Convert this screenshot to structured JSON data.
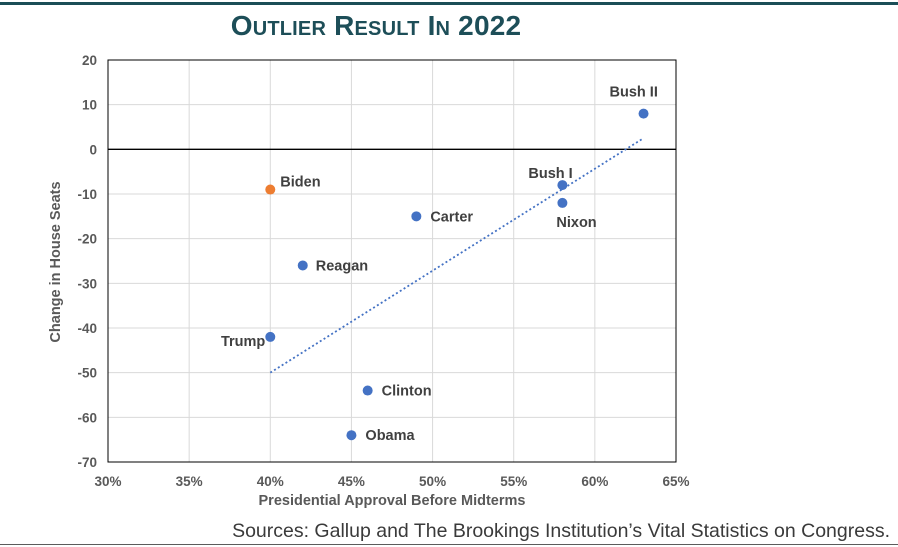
{
  "page": {
    "title": "Outlier Result In 2022",
    "source": "Sources: Gallup and The Brookings Institution’s Vital Statistics on Congress."
  },
  "chart_data": {
    "type": "scatter",
    "title": "Outlier Result In 2022",
    "xlabel": "Presidential Approval Before Midterms",
    "ylabel": "Change in House Seats",
    "xlim": [
      30,
      65
    ],
    "ylim": [
      -70,
      20
    ],
    "x_ticks": [
      30,
      35,
      40,
      45,
      50,
      55,
      60,
      65
    ],
    "x_tick_labels": [
      "30%",
      "35%",
      "40%",
      "45%",
      "50%",
      "55%",
      "60%",
      "65%"
    ],
    "y_ticks": [
      -70,
      -60,
      -50,
      -40,
      -30,
      -20,
      -10,
      0,
      10,
      20
    ],
    "y_tick_labels": [
      "-70",
      "-60",
      "-50",
      "-40",
      "-30",
      "-20",
      "-10",
      "0",
      "10",
      "20"
    ],
    "grid": true,
    "points": [
      {
        "label": "Bush II",
        "x": 63,
        "y": 8,
        "color": "#4472c4"
      },
      {
        "label": "Bush I",
        "x": 58,
        "y": -8,
        "color": "#4472c4"
      },
      {
        "label": "Nixon",
        "x": 58,
        "y": -12,
        "color": "#4472c4"
      },
      {
        "label": "Biden",
        "x": 40,
        "y": -9,
        "color": "#ed7d31"
      },
      {
        "label": "Carter",
        "x": 49,
        "y": -15,
        "color": "#4472c4"
      },
      {
        "label": "Reagan",
        "x": 42,
        "y": -26,
        "color": "#4472c4"
      },
      {
        "label": "Trump",
        "x": 40,
        "y": -42,
        "color": "#4472c4"
      },
      {
        "label": "Clinton",
        "x": 46,
        "y": -54,
        "color": "#4472c4"
      },
      {
        "label": "Obama",
        "x": 45,
        "y": -64,
        "color": "#4472c4"
      }
    ],
    "trendline": {
      "style": "dotted",
      "color": "#4472c4",
      "x": [
        40,
        63
      ],
      "y": [
        -50,
        2.5
      ]
    }
  }
}
